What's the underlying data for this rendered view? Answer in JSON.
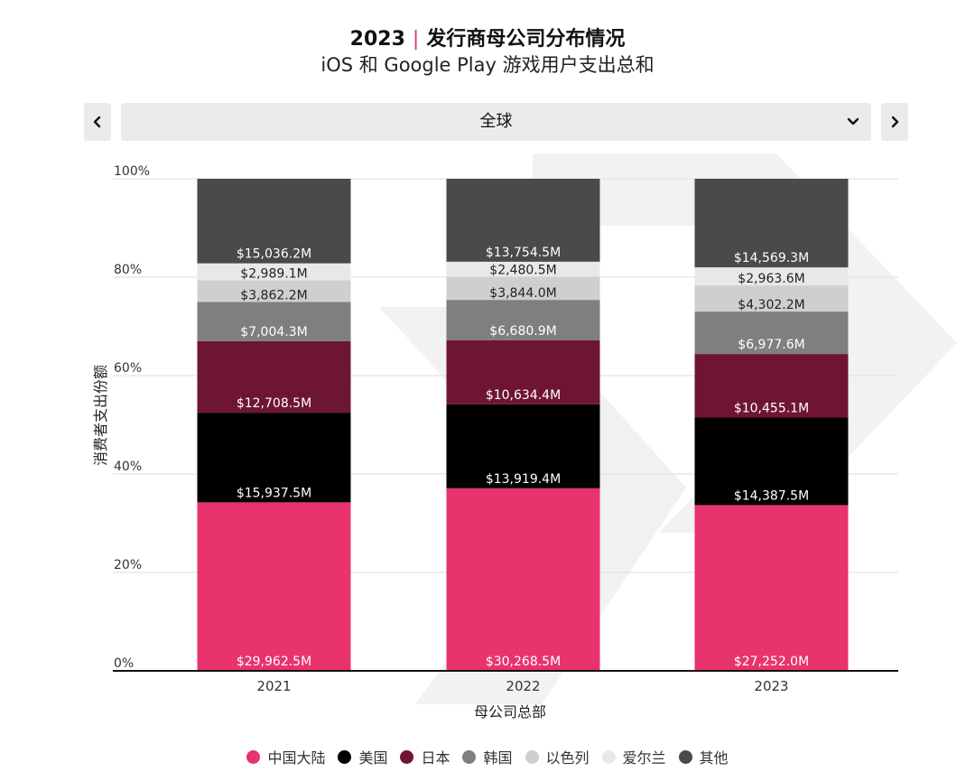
{
  "header": {
    "title_year": "2023",
    "title_text": "发行商母公司分布情况",
    "subtitle": "iOS 和 Google Play 游戏用户支出总和"
  },
  "controls": {
    "prev_icon": "chevron-left-icon",
    "next_icon": "chevron-right-icon",
    "region_value": "全球",
    "dropdown_icon": "chevron-down-icon"
  },
  "chart_data": {
    "type": "bar",
    "stacked": true,
    "normalized": true,
    "title": "2023 | 发行商母公司分布情况",
    "subtitle": "iOS 和 Google Play 游戏用户支出总和",
    "xlabel": "母公司总部",
    "ylabel": "消费者支出份额",
    "categories": [
      "2021",
      "2022",
      "2023"
    ],
    "ylim": [
      0,
      100
    ],
    "yticks": [
      "0%",
      "20%",
      "40%",
      "60%",
      "80%",
      "100%"
    ],
    "legend_position": "bottom",
    "series": [
      {
        "name": "中国大陆",
        "color": "#e8336d",
        "label_color": "#ffffff",
        "values": [
          29962.5,
          30268.5,
          27252.0
        ],
        "labels": [
          "$29,962.5M",
          "$30,268.5M",
          "$27,252.0M"
        ]
      },
      {
        "name": "美国",
        "color": "#000000",
        "label_color": "#ffffff",
        "values": [
          15937.5,
          13919.4,
          14387.5
        ],
        "labels": [
          "$15,937.5M",
          "$13,919.4M",
          "$14,387.5M"
        ]
      },
      {
        "name": "日本",
        "color": "#6e1536",
        "label_color": "#ffffff",
        "values": [
          12708.5,
          10634.4,
          10455.1
        ],
        "labels": [
          "$12,708.5M",
          "$10,634.4M",
          "$10,455.1M"
        ]
      },
      {
        "name": "韩国",
        "color": "#7f7f7f",
        "label_color": "#ffffff",
        "values": [
          7004.3,
          6680.9,
          6977.6
        ],
        "labels": [
          "$7,004.3M",
          "$6,680.9M",
          "$6,977.6M"
        ]
      },
      {
        "name": "以色列",
        "color": "#cfcfcf",
        "label_color": "#222222",
        "values": [
          3862.2,
          3844.0,
          4302.2
        ],
        "labels": [
          "$3,862.2M",
          "$3,844.0M",
          "$4,302.2M"
        ]
      },
      {
        "name": "爱尔兰",
        "color": "#e8e8e8",
        "label_color": "#222222",
        "values": [
          2989.1,
          2480.5,
          2963.6
        ],
        "labels": [
          "$2,989.1M",
          "$2,480.5M",
          "$2,963.6M"
        ]
      },
      {
        "name": "其他",
        "color": "#4a4a4a",
        "label_color": "#ffffff",
        "values": [
          15036.2,
          13754.5,
          14569.3
        ],
        "labels": [
          "$15,036.2M",
          "$13,754.5M",
          "$14,569.3M"
        ]
      }
    ]
  }
}
